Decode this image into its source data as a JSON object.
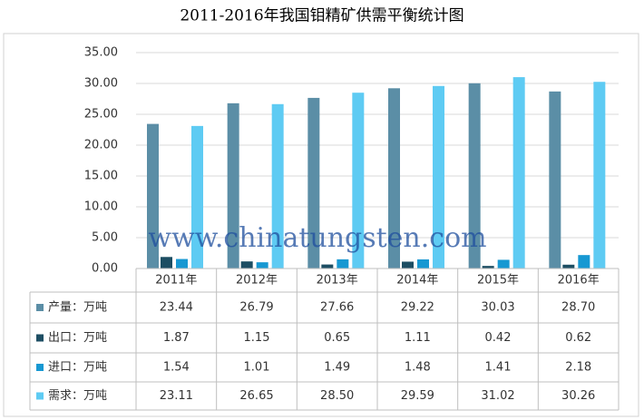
{
  "chart_data": {
    "type": "bar",
    "title": "2011-2016年我国钼精矿供需平衡统计图",
    "watermark": "www.chinatungsten.com",
    "categories": [
      "2011年",
      "2012年",
      "2013年",
      "2014年",
      "2015年",
      "2016年"
    ],
    "series": [
      {
        "name": "产量：万吨",
        "color": "#5b8ea6",
        "values": [
          23.44,
          26.79,
          27.66,
          29.22,
          30.03,
          28.7
        ],
        "value_labels": [
          "23.44",
          "26.79",
          "27.66",
          "29.22",
          "30.03",
          "28.70"
        ]
      },
      {
        "name": "出口：万吨",
        "color": "#1d4e63",
        "values": [
          1.87,
          1.15,
          0.65,
          1.11,
          0.42,
          0.62
        ],
        "value_labels": [
          "1.87",
          "1.15",
          "0.65",
          "1.11",
          "0.42",
          "0.62"
        ]
      },
      {
        "name": "进口：万吨",
        "color": "#1798d2",
        "values": [
          1.54,
          1.01,
          1.49,
          1.48,
          1.41,
          2.18
        ],
        "value_labels": [
          "1.54",
          "1.01",
          "1.49",
          "1.48",
          "1.41",
          "2.18"
        ]
      },
      {
        "name": "需求：万吨",
        "color": "#5ecbf3",
        "values": [
          23.11,
          26.65,
          28.5,
          29.59,
          31.02,
          30.26
        ],
        "value_labels": [
          "23.11",
          "26.65",
          "28.50",
          "29.59",
          "31.02",
          "30.26"
        ]
      }
    ],
    "ylim": [
      0,
      35
    ],
    "yticks": [
      {
        "value": 0,
        "label": "0.00"
      },
      {
        "value": 5,
        "label": "5.00"
      },
      {
        "value": 10,
        "label": "10.00"
      },
      {
        "value": 15,
        "label": "15.00"
      },
      {
        "value": 20,
        "label": "20.00"
      },
      {
        "value": 25,
        "label": "25.00"
      },
      {
        "value": 30,
        "label": "30.00"
      },
      {
        "value": 35,
        "label": "35.00"
      }
    ],
    "grid": true
  }
}
